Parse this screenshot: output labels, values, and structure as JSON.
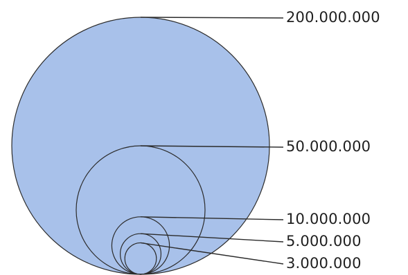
{
  "chart_data": {
    "type": "nested-circles",
    "title": "",
    "values": [
      200000000,
      50000000,
      10000000,
      5000000,
      3000000
    ],
    "labels": [
      "200.000.000",
      "50.000.000",
      "10.000.000",
      "5.000.000",
      "3.000.000"
    ],
    "area_proportional": true,
    "colors": {
      "largest_fill": "#a8c1ea",
      "stroke": "#2b2b2b",
      "text": "#1f1f1f"
    }
  }
}
